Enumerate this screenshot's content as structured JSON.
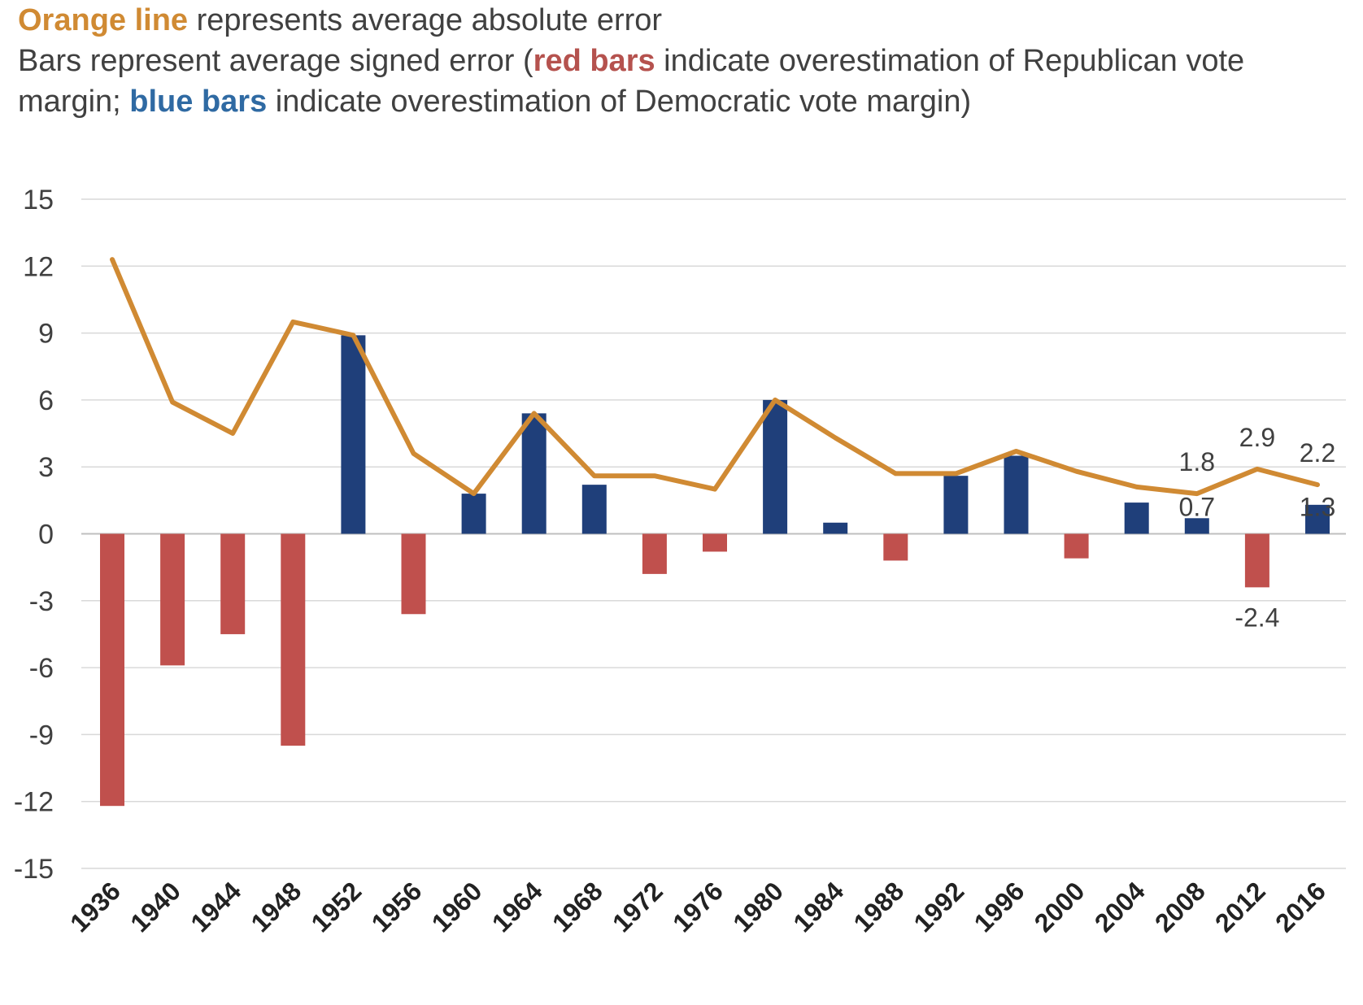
{
  "legend": {
    "line1_highlight": "Orange line",
    "line1_rest": " represents average absolute error",
    "line2_a": "Bars represent average signed error (",
    "line2_red": "red bars",
    "line2_b": " indicate overestimation of Republican vote margin; ",
    "line2_blue": "blue bars",
    "line2_c": " indicate overestimation of Democratic vote margin)"
  },
  "chart_data": {
    "type": "bar",
    "title": "",
    "xlabel": "",
    "ylabel": "",
    "ylim": [
      -15,
      15
    ],
    "yticks": [
      15,
      12,
      9,
      6,
      3,
      0,
      -3,
      -6,
      -9,
      -12,
      -15
    ],
    "grid": true,
    "categories": [
      "1936",
      "1940",
      "1944",
      "1948",
      "1952",
      "1956",
      "1960",
      "1964",
      "1968",
      "1972",
      "1976",
      "1980",
      "1984",
      "1988",
      "1992",
      "1996",
      "2000",
      "2004",
      "2008",
      "2012",
      "2016"
    ],
    "series": [
      {
        "kind": "bar",
        "values": [
          -12.2,
          -5.9,
          -4.5,
          -9.5,
          8.9,
          -3.6,
          1.8,
          5.4,
          2.2,
          -1.8,
          -0.8,
          6.0,
          0.5,
          -1.2,
          2.6,
          3.5,
          -1.1,
          1.4,
          0.7,
          -2.4,
          1.3
        ],
        "color_negative": "#c0504d",
        "color_positive": "#1f3f7a"
      },
      {
        "kind": "line",
        "values": [
          12.3,
          5.9,
          4.5,
          9.5,
          8.9,
          3.6,
          1.8,
          5.4,
          2.6,
          2.6,
          2.0,
          6.0,
          4.3,
          2.7,
          2.7,
          3.7,
          2.8,
          2.1,
          1.8,
          2.9,
          2.2
        ],
        "color": "#d08a33"
      }
    ],
    "data_labels": [
      {
        "category": "2008",
        "series": "line",
        "text": "1.8"
      },
      {
        "category": "2012",
        "series": "line",
        "text": "2.9"
      },
      {
        "category": "2016",
        "series": "line",
        "text": "2.2"
      },
      {
        "category": "2008",
        "series": "bar",
        "text": "0.7"
      },
      {
        "category": "2016",
        "series": "bar",
        "text": "1.3"
      },
      {
        "category": "2012",
        "series": "bar",
        "text": "-2.4"
      }
    ]
  }
}
